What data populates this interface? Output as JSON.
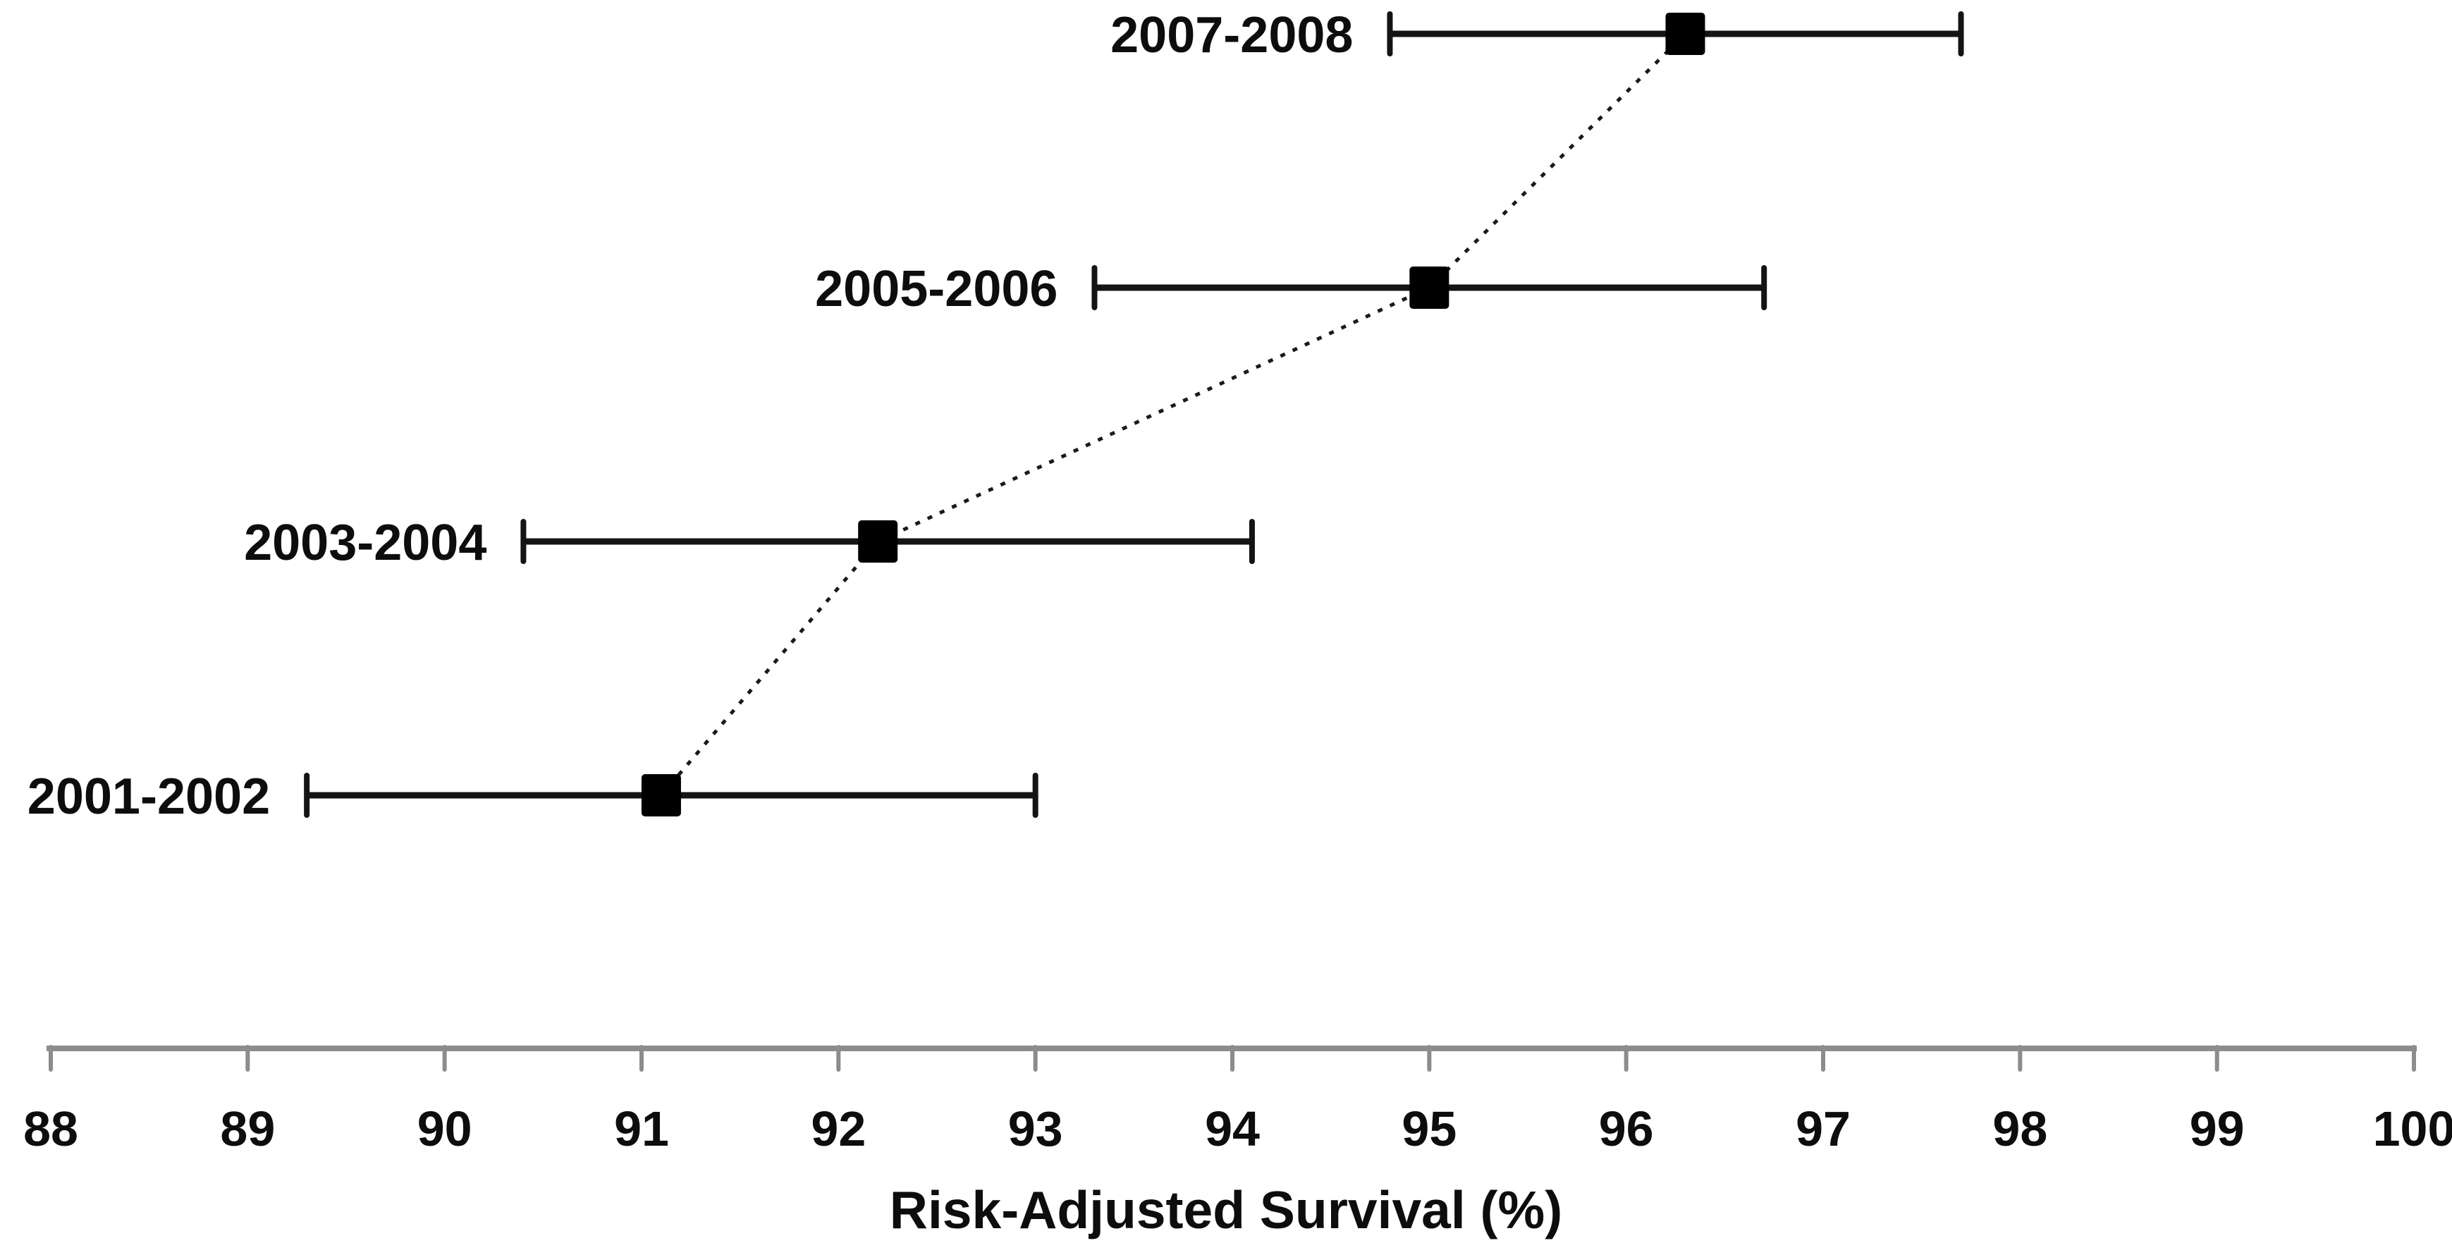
{
  "chart_data": {
    "type": "scatter",
    "subtype": "horizontal-dot-plot-with-error-bars",
    "title": "",
    "xlabel": "Risk-Adjusted Survival (%)",
    "ylabel": "",
    "xlim": [
      88,
      100
    ],
    "x_ticks": [
      88,
      89,
      90,
      91,
      92,
      93,
      94,
      95,
      96,
      97,
      98,
      99,
      100
    ],
    "grid": false,
    "legend_position": "none",
    "categories": [
      "2001-2002",
      "2003-2004",
      "2005-2006",
      "2007-2008"
    ],
    "series": [
      {
        "name": "Risk-Adjusted Survival (%)",
        "values": [
          91.1,
          92.2,
          95.0,
          96.3
        ],
        "ci_low": [
          89.3,
          90.4,
          93.3,
          94.8
        ],
        "ci_high": [
          93.0,
          94.1,
          96.7,
          97.7
        ]
      }
    ],
    "marker": "filled-square",
    "connector": "dotted-line",
    "colors": {
      "marker": "#000000",
      "error_bar": "#141414",
      "connector": "#1a1a1a",
      "axis_line": "#8c8c8c",
      "text": "#0d0d0d",
      "background": "#ffffff"
    }
  }
}
